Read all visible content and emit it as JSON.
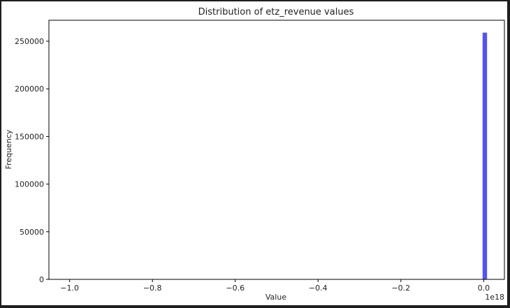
{
  "chart_data": {
    "type": "bar",
    "title": "Distribution of etz_revenue values",
    "xlabel": "Value",
    "ylabel": "Frequency",
    "x_offset_label": "1e18",
    "xlim": [
      -1.05,
      0.05
    ],
    "ylim": [
      0,
      272000
    ],
    "x_ticks": [
      -1.0,
      -0.8,
      -0.6,
      -0.4,
      -0.2,
      0.0
    ],
    "x_tick_labels": [
      "−1.0",
      "−0.8",
      "−0.6",
      "−0.4",
      "−0.2",
      "0.0"
    ],
    "y_ticks": [
      0,
      50000,
      100000,
      150000,
      200000,
      250000
    ],
    "y_tick_labels": [
      "0",
      "50000",
      "100000",
      "150000",
      "200000",
      "250000"
    ],
    "grid": false,
    "bars": [
      {
        "x_start": -0.0027,
        "x_end": 0.0081,
        "value": 259000
      }
    ],
    "bar_color": "#4b4bf0"
  }
}
